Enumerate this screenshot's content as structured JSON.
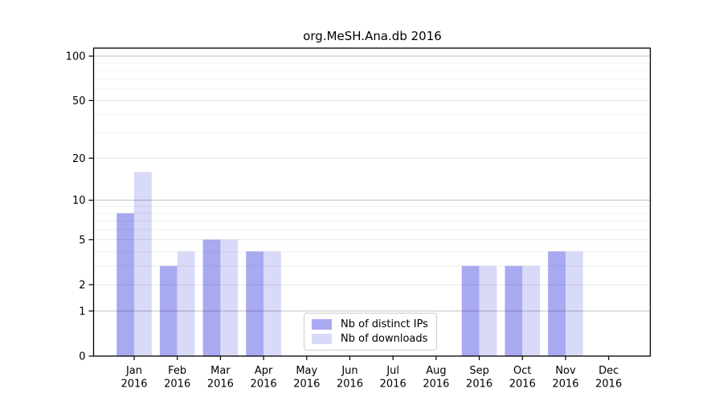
{
  "figure": {
    "background": "#ffffff"
  },
  "chart_data": {
    "type": "bar",
    "title": "org.MeSH.Ana.db 2016",
    "year": "2016",
    "months": [
      "Jan",
      "Feb",
      "Mar",
      "Apr",
      "May",
      "Jun",
      "Jul",
      "Aug",
      "Sep",
      "Oct",
      "Nov",
      "Dec"
    ],
    "categories": [
      "Jan 2016",
      "Feb 2016",
      "Mar 2016",
      "Apr 2016",
      "May 2016",
      "Jun 2016",
      "Jul 2016",
      "Aug 2016",
      "Sep 2016",
      "Oct 2016",
      "Nov 2016",
      "Dec 2016"
    ],
    "series": [
      {
        "name": "Nb of distinct IPs",
        "color": "#a9a9f2",
        "values": [
          8,
          3,
          5,
          4,
          0,
          0,
          0,
          0,
          3,
          3,
          4,
          0
        ]
      },
      {
        "name": "Nb of downloads",
        "color": "#d9d9f8",
        "values": [
          16,
          4,
          5,
          4,
          0,
          0,
          0,
          0,
          3,
          3,
          4,
          0
        ]
      }
    ],
    "xlabel": "",
    "ylabel": "",
    "yticks": [
      0,
      1,
      2,
      5,
      10,
      20,
      50,
      100
    ],
    "yscale": "log1p",
    "ylim": [
      0,
      113
    ],
    "grid": true,
    "legend_position": "lower center"
  }
}
